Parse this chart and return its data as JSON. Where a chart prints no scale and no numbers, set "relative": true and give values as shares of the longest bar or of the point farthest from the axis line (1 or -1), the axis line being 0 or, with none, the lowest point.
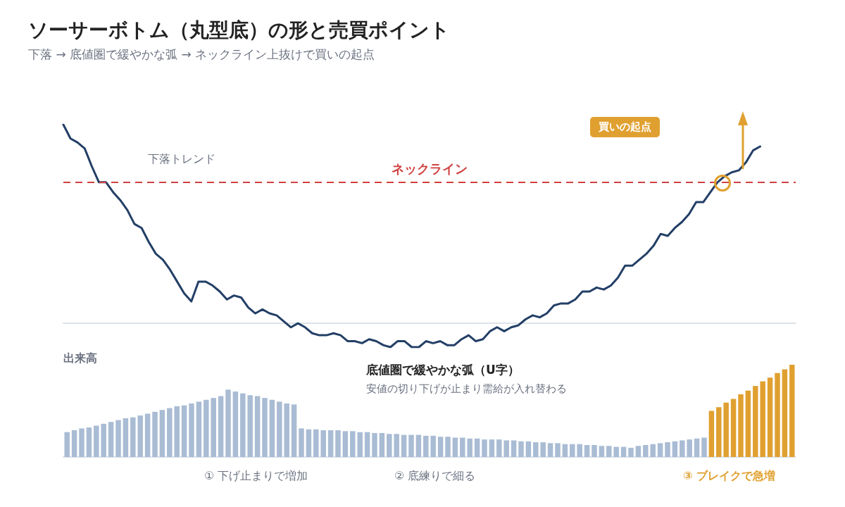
{
  "chart_data": [
    {
      "type": "line",
      "title": "ソーサーボトム（丸型底）の形と売買ポイント",
      "subtitle": "下落 → 底値圏で緩やかな弧 → ネックライン上抜けで買いの起点",
      "relative": true,
      "tick_labels": false,
      "marker": "none",
      "line_style": "solid",
      "color": "#233f66",
      "annotations": [
        "下落トレンド",
        "買いの起点"
      ],
      "ref_lines": [
        {
          "axis": "y",
          "value": 0.71,
          "label": "ネックライン",
          "color": "#d04040",
          "line_style": "dashed"
        }
      ],
      "categories": [
        null,
        null,
        null,
        null,
        null,
        null,
        null,
        null,
        null,
        null,
        null,
        null,
        null,
        null,
        null,
        null,
        null,
        null,
        null,
        null,
        null,
        null,
        null,
        null,
        null,
        null,
        null,
        null,
        null,
        null,
        null,
        null,
        null,
        null,
        null,
        null,
        null,
        null,
        null,
        null,
        null,
        null,
        null,
        null,
        null,
        null,
        null,
        null,
        null,
        null,
        null,
        null,
        null,
        null,
        null,
        null,
        null,
        null,
        null,
        null,
        null,
        null,
        null,
        null,
        null,
        null,
        null,
        null,
        null,
        null,
        null,
        null,
        null,
        null,
        null,
        null,
        null,
        null,
        null,
        null,
        null,
        null,
        null,
        null,
        null,
        null,
        null,
        null,
        null,
        null,
        null,
        null,
        null,
        null,
        null,
        null,
        null,
        null,
        null,
        null,
        null,
        null,
        null,
        null
      ],
      "values": [
        1.0,
        0.93,
        0.91,
        0.88,
        0.79,
        0.71,
        0.71,
        0.66,
        0.62,
        0.57,
        0.5,
        0.48,
        0.41,
        0.35,
        0.32,
        0.27,
        0.21,
        0.15,
        0.11,
        0.21,
        0.21,
        0.19,
        0.16,
        0.12,
        0.14,
        0.13,
        0.08,
        0.05,
        0.07,
        0.05,
        0.04,
        0.01,
        -0.02,
        0.0,
        -0.02,
        -0.05,
        -0.06,
        -0.06,
        -0.05,
        -0.06,
        -0.09,
        -0.09,
        -0.1,
        -0.08,
        -0.09,
        -0.11,
        -0.12,
        -0.09,
        -0.09,
        -0.12,
        -0.12,
        -0.09,
        -0.1,
        -0.09,
        -0.11,
        -0.11,
        -0.08,
        -0.06,
        -0.09,
        -0.08,
        -0.04,
        -0.02,
        -0.04,
        -0.02,
        -0.01,
        0.02,
        0.04,
        0.03,
        0.05,
        0.09,
        0.1,
        0.1,
        0.12,
        0.16,
        0.16,
        0.18,
        0.17,
        0.19,
        0.23,
        0.29,
        0.29,
        0.32,
        0.35,
        0.39,
        0.45,
        0.44,
        0.48,
        0.51,
        0.55,
        0.61,
        0.61,
        0.66,
        0.71,
        0.74,
        0.76,
        0.77,
        0.81,
        0.87,
        0.89,
        null,
        null,
        null,
        null,
        null
      ]
    },
    {
      "type": "bar",
      "title": "出来高",
      "relative": true,
      "tick_labels": false,
      "annotations": [
        "底値圏で緩やかな弧（U字）",
        "安値の切り下げが止まり需給が入れ替わる",
        "① 下げ止まりで増加",
        "② 底練りで細る",
        "③ ブレイクで急増"
      ],
      "categories": [
        null,
        null,
        null,
        null,
        null,
        null,
        null,
        null,
        null,
        null,
        null,
        null,
        null,
        null,
        null,
        null,
        null,
        null,
        null,
        null,
        null,
        null,
        null,
        null,
        null,
        null,
        null,
        null,
        null,
        null,
        null,
        null,
        null,
        null,
        null,
        null,
        null,
        null,
        null,
        null,
        null,
        null,
        null,
        null,
        null,
        null,
        null,
        null,
        null,
        null,
        null,
        null,
        null,
        null,
        null,
        null,
        null,
        null,
        null,
        null,
        null,
        null,
        null,
        null,
        null,
        null,
        null,
        null,
        null,
        null,
        null,
        null,
        null,
        null,
        null,
        null,
        null,
        null,
        null,
        null,
        null,
        null,
        null,
        null,
        null,
        null,
        null,
        null,
        null,
        null,
        null,
        null,
        null,
        null,
        null,
        null,
        null,
        null,
        null,
        null
      ],
      "values": [
        0.27,
        0.29,
        0.31,
        0.32,
        0.34,
        0.36,
        0.38,
        0.4,
        0.42,
        0.43,
        0.45,
        0.47,
        0.49,
        0.51,
        0.53,
        0.55,
        0.56,
        0.58,
        0.6,
        0.62,
        0.64,
        0.66,
        0.73,
        0.71,
        0.69,
        0.67,
        0.66,
        0.64,
        0.62,
        0.6,
        0.58,
        0.57,
        0.31,
        0.3,
        0.3,
        0.29,
        0.29,
        0.29,
        0.28,
        0.28,
        0.27,
        0.27,
        0.26,
        0.26,
        0.25,
        0.25,
        0.24,
        0.24,
        0.24,
        0.23,
        0.23,
        0.22,
        0.22,
        0.21,
        0.21,
        0.2,
        0.2,
        0.19,
        0.19,
        0.19,
        0.18,
        0.18,
        0.17,
        0.17,
        0.16,
        0.16,
        0.15,
        0.15,
        0.14,
        0.14,
        0.14,
        0.13,
        0.13,
        0.12,
        0.12,
        0.11,
        0.11,
        0.1,
        0.12,
        0.13,
        0.14,
        0.15,
        0.16,
        0.17,
        0.18,
        0.19,
        0.2,
        0.21,
        0.5,
        0.54,
        0.59,
        0.63,
        0.68,
        0.72,
        0.77,
        0.82,
        0.86,
        0.91,
        0.95,
        1.0
      ],
      "colors": [
        "#a9bcd4",
        "#a9bcd4",
        "#a9bcd4",
        "#a9bcd4",
        "#a9bcd4",
        "#a9bcd4",
        "#a9bcd4",
        "#a9bcd4",
        "#a9bcd4",
        "#a9bcd4",
        "#a9bcd4",
        "#a9bcd4",
        "#a9bcd4",
        "#a9bcd4",
        "#a9bcd4",
        "#a9bcd4",
        "#a9bcd4",
        "#a9bcd4",
        "#a9bcd4",
        "#a9bcd4",
        "#a9bcd4",
        "#a9bcd4",
        "#a9bcd4",
        "#a9bcd4",
        "#a9bcd4",
        "#a9bcd4",
        "#a9bcd4",
        "#a9bcd4",
        "#a9bcd4",
        "#a9bcd4",
        "#a9bcd4",
        "#a9bcd4",
        "#a9bcd4",
        "#a9bcd4",
        "#a9bcd4",
        "#a9bcd4",
        "#a9bcd4",
        "#a9bcd4",
        "#a9bcd4",
        "#a9bcd4",
        "#a9bcd4",
        "#a9bcd4",
        "#a9bcd4",
        "#a9bcd4",
        "#a9bcd4",
        "#a9bcd4",
        "#a9bcd4",
        "#a9bcd4",
        "#a9bcd4",
        "#a9bcd4",
        "#a9bcd4",
        "#a9bcd4",
        "#a9bcd4",
        "#a9bcd4",
        "#a9bcd4",
        "#a9bcd4",
        "#a9bcd4",
        "#a9bcd4",
        "#a9bcd4",
        "#a9bcd4",
        "#a9bcd4",
        "#a9bcd4",
        "#a9bcd4",
        "#a9bcd4",
        "#a9bcd4",
        "#a9bcd4",
        "#a9bcd4",
        "#a9bcd4",
        "#a9bcd4",
        "#a9bcd4",
        "#a9bcd4",
        "#a9bcd4",
        "#a9bcd4",
        "#a9bcd4",
        "#a9bcd4",
        "#a9bcd4",
        "#a9bcd4",
        "#a9bcd4",
        "#a9bcd4",
        "#a9bcd4",
        "#a9bcd4",
        "#a9bcd4",
        "#a9bcd4",
        "#a9bcd4",
        "#a9bcd4",
        "#a9bcd4",
        "#a9bcd4",
        "#a9bcd4",
        "#e0a030",
        "#e0a030",
        "#e0a030",
        "#e0a030",
        "#e0a030",
        "#e0a030",
        "#e0a030",
        "#e0a030",
        "#e0a030",
        "#e0a030",
        "#e0a030",
        "#e0a030"
      ]
    }
  ]
}
